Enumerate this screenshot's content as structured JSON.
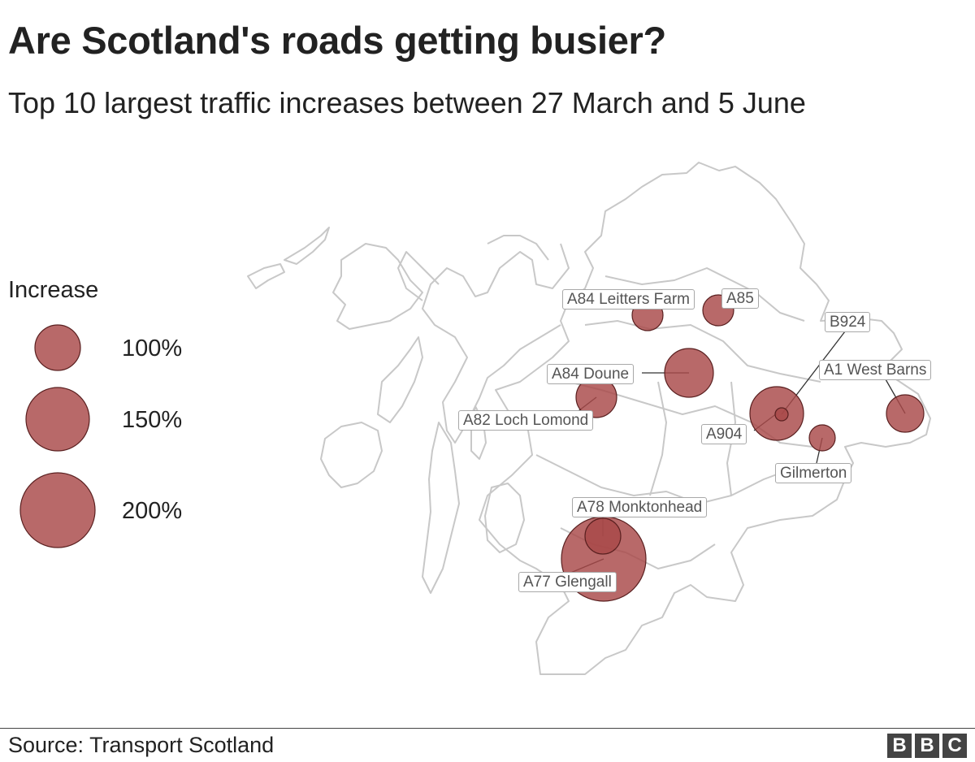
{
  "title": "Are Scotland's roads getting busier?",
  "subtitle": "Top 10 largest traffic increases between 27 March and 5 June",
  "legend": {
    "title": "Increase",
    "items": [
      {
        "label": "100%",
        "value": 100
      },
      {
        "label": "150%",
        "value": 150
      },
      {
        "label": "200%",
        "value": 200
      }
    ]
  },
  "colors": {
    "bubble": "#a84848",
    "bubble_stroke": "#5a2020",
    "coast": "#c8c8c8"
  },
  "sites": [
    {
      "name": "A84 Leitters Farm"
    },
    {
      "name": "A85"
    },
    {
      "name": "B924"
    },
    {
      "name": "A84 Doune"
    },
    {
      "name": "A1 West Barns"
    },
    {
      "name": "A82 Loch Lomond"
    },
    {
      "name": "A904"
    },
    {
      "name": "Gilmerton"
    },
    {
      "name": "A78 Monktonhead"
    },
    {
      "name": "A77 Glengall"
    }
  ],
  "source": "Source: Transport Scotland",
  "logo_letters": [
    "B",
    "B",
    "C"
  ]
}
